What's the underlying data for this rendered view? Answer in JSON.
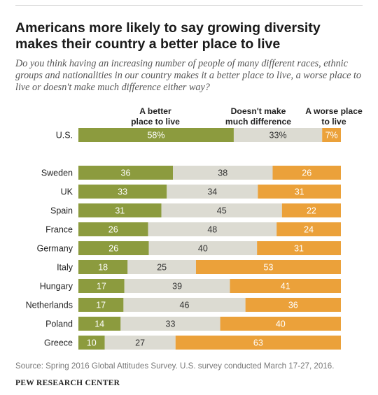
{
  "header": {
    "title": "Americans more likely to say growing diversity makes their country a better place to live",
    "subtitle": "Do you think having an increasing number of people of many different races, ethnic groups and nationalities in our country makes it a better place to live, a worse place to live or doesn't make much difference either way?"
  },
  "legend": {
    "better": "A better place to live",
    "nodiff": "Doesn't make much difference",
    "worse": "A worse place to live"
  },
  "footer": {
    "source": "Source: Spring 2016 Global Attitudes Survey. U.S. survey conducted March 17-27, 2016.",
    "brand": "PEW RESEARCH CENTER"
  },
  "colors": {
    "better": "#8c9b3e",
    "nodiff": "#dcdbd2",
    "worse": "#eba13a",
    "text_on_dark": "#ffffff",
    "text_on_light": "#333333"
  },
  "chart_data": {
    "type": "bar",
    "orientation": "horizontal",
    "stacked": true,
    "xlim": [
      0,
      100
    ],
    "categories": [
      "U.S.",
      "Sweden",
      "UK",
      "Spain",
      "France",
      "Germany",
      "Italy",
      "Hungary",
      "Netherlands",
      "Poland",
      "Greece"
    ],
    "series": [
      {
        "name": "A better place to live",
        "values": [
          58,
          36,
          33,
          31,
          26,
          26,
          18,
          17,
          17,
          14,
          10
        ]
      },
      {
        "name": "Doesn't make much difference",
        "values": [
          33,
          38,
          34,
          45,
          48,
          40,
          25,
          39,
          46,
          33,
          27
        ]
      },
      {
        "name": "A worse place to live",
        "values": [
          7,
          26,
          31,
          22,
          24,
          31,
          53,
          41,
          36,
          40,
          63
        ]
      }
    ],
    "labels": [
      [
        "58%",
        "33%",
        "7%"
      ],
      [
        "36",
        "38",
        "26"
      ],
      [
        "33",
        "34",
        "31"
      ],
      [
        "31",
        "45",
        "22"
      ],
      [
        "26",
        "48",
        "24"
      ],
      [
        "26",
        "40",
        "31"
      ],
      [
        "18",
        "25",
        "53"
      ],
      [
        "17",
        "39",
        "41"
      ],
      [
        "17",
        "46",
        "36"
      ],
      [
        "14",
        "33",
        "40"
      ],
      [
        "10",
        "27",
        "63"
      ]
    ]
  }
}
